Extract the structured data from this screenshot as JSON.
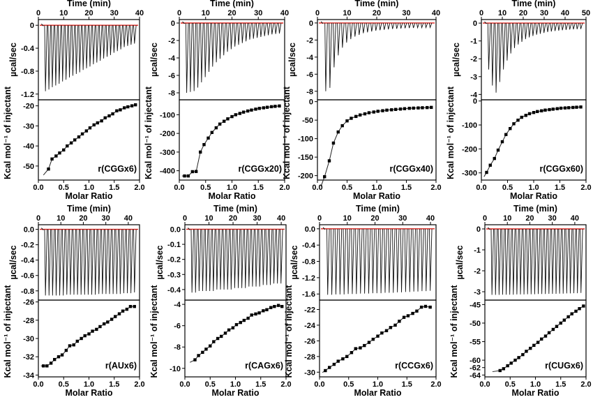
{
  "chart_data": [
    {
      "type": "scatter",
      "panel": "r(CGGx6)",
      "sample_label": "r(CGGx6)",
      "time_axis": {
        "label": "Time (min)",
        "ticks": [
          "0",
          "10",
          "20",
          "30",
          "40"
        ],
        "range": [
          0,
          40
        ]
      },
      "thermogram": {
        "ylabel": "µcal/sec",
        "ticks": [
          "0",
          "-0.4",
          "-0.8",
          "-1.2"
        ],
        "ylim": [
          -1.3,
          0.1
        ],
        "peaks": [
          -1.15,
          -1.12,
          -1.08,
          -1.05,
          -1.02,
          -0.98,
          -0.95,
          -0.91,
          -0.88,
          -0.85,
          -0.82,
          -0.78,
          -0.75,
          -0.72,
          -0.68,
          -0.65,
          -0.62,
          -0.58,
          -0.55,
          -0.52,
          -0.48,
          -0.45,
          -0.42,
          -0.38,
          -0.36,
          -0.34,
          -0.32
        ]
      },
      "isotherm": {
        "xlabel": "Molar Ratio",
        "ylabel": "Kcal mol⁻¹ of injectant",
        "xticks": [
          "0.0",
          "0.5",
          "1.0",
          "1.5",
          "2.0"
        ],
        "yticks": [
          "-20",
          "-30",
          "-40",
          "-50"
        ],
        "xlim": [
          0,
          2.0
        ],
        "ylim": [
          -57,
          -17
        ],
        "x": [
          0.2,
          0.27,
          0.35,
          0.42,
          0.5,
          0.57,
          0.65,
          0.72,
          0.8,
          0.87,
          0.95,
          1.02,
          1.1,
          1.17,
          1.25,
          1.32,
          1.4,
          1.47,
          1.55,
          1.62,
          1.7,
          1.77,
          1.85,
          1.92
        ],
        "y": [
          -51.5,
          -46.5,
          -45,
          -43.5,
          -42,
          -40,
          -38.5,
          -37,
          -35.5,
          -34,
          -32.5,
          -31,
          -29.5,
          -28.5,
          -27.5,
          -26,
          -25,
          -24,
          -22.5,
          -22,
          -21,
          -20.5,
          -20,
          -19.5
        ]
      }
    },
    {
      "type": "scatter",
      "panel": "r(CGGx20)",
      "sample_label": "r(CGGx20)",
      "time_axis": {
        "label": "Time (min)",
        "ticks": [
          "0",
          "10",
          "20",
          "30",
          "40"
        ],
        "range": [
          0,
          40
        ]
      },
      "thermogram": {
        "ylabel": "µcal/sec",
        "ticks": [
          "0",
          "-2",
          "-4",
          "-6",
          "-8"
        ],
        "ylim": [
          -8.8,
          0.4
        ],
        "peaks": [
          -8.0,
          -7.9,
          -7.8,
          -7.4,
          -6.8,
          -6.2,
          -5.6,
          -5.0,
          -4.5,
          -4.1,
          -3.7,
          -3.3,
          -3.0,
          -2.7,
          -2.5,
          -2.3,
          -2.1,
          -1.9,
          -1.8,
          -1.7,
          -1.6,
          -1.5,
          -1.4,
          -1.3,
          -1.25,
          -1.2
        ]
      },
      "isotherm": {
        "xlabel": "Molar Ratio",
        "ylabel": "Kcal mol⁻¹ of injectant",
        "xticks": [
          "0.0",
          "0.5",
          "1.0",
          "1.5",
          "2.0"
        ],
        "yticks": [
          "-100",
          "-200",
          "-300",
          "-400"
        ],
        "xlim": [
          0,
          2.0
        ],
        "ylim": [
          -450,
          -20
        ],
        "x": [
          0.1,
          0.17,
          0.25,
          0.32,
          0.4,
          0.47,
          0.55,
          0.62,
          0.7,
          0.77,
          0.85,
          0.92,
          1.0,
          1.07,
          1.15,
          1.22,
          1.3,
          1.37,
          1.45,
          1.52,
          1.6,
          1.67,
          1.75,
          1.82,
          1.9
        ],
        "y": [
          -428,
          -428,
          -405,
          -404,
          -300,
          -260,
          -225,
          -195,
          -170,
          -150,
          -135,
          -122,
          -110,
          -100,
          -93,
          -86,
          -80,
          -75,
          -70,
          -66,
          -63,
          -60,
          -57,
          -55,
          -53
        ]
      }
    },
    {
      "type": "scatter",
      "panel": "r(CGGx40)",
      "sample_label": "r(CGGx40)",
      "time_axis": {
        "label": "Time (min)",
        "ticks": [
          "0",
          "10",
          "20",
          "30",
          "40"
        ],
        "range": [
          0,
          40
        ]
      },
      "thermogram": {
        "ylabel": "µcal/sec",
        "ticks": [
          "0",
          "-2",
          "-4",
          "-6",
          "-8"
        ],
        "ylim": [
          -9.0,
          0.4
        ],
        "peaks": [
          -8.0,
          -7.6,
          -5.2,
          -3.8,
          -2.9,
          -2.3,
          -1.9,
          -1.6,
          -1.4,
          -1.2,
          -1.1,
          -1.0,
          -0.9,
          -0.85,
          -0.8,
          -0.75,
          -0.7,
          -0.68,
          -0.65,
          -0.62,
          -0.6,
          -0.58,
          -0.56,
          -0.55,
          -0.54,
          -0.53
        ]
      },
      "isotherm": {
        "xlabel": "Molar Ratio",
        "ylabel": "Kcal mol⁻¹ of injectant",
        "xticks": [
          "0.0",
          "0.5",
          "1.0",
          "1.5",
          "2.0"
        ],
        "yticks": [
          "0",
          "-50",
          "-100",
          "-150",
          "-200"
        ],
        "xlim": [
          0,
          2.0
        ],
        "ylim": [
          -212,
          5
        ],
        "x": [
          0.12,
          0.2,
          0.27,
          0.35,
          0.42,
          0.5,
          0.57,
          0.65,
          0.72,
          0.8,
          0.87,
          0.95,
          1.02,
          1.1,
          1.17,
          1.25,
          1.32,
          1.4,
          1.47,
          1.55,
          1.62,
          1.7,
          1.77,
          1.85,
          1.92
        ],
        "y": [
          -203,
          -160,
          -112,
          -82,
          -65,
          -52,
          -45,
          -40,
          -36,
          -33,
          -30,
          -28,
          -26,
          -24.5,
          -23,
          -22,
          -21,
          -20,
          -19,
          -18,
          -17.5,
          -17,
          -16.5,
          -16,
          -15.5
        ]
      }
    },
    {
      "type": "scatter",
      "panel": "r(CGGx60)",
      "sample_label": "r(CGGx60)",
      "time_axis": {
        "label": "Time (min)",
        "ticks": [
          "0",
          "10",
          "20",
          "30",
          "40",
          "50"
        ],
        "range": [
          0,
          50
        ]
      },
      "thermogram": {
        "ylabel": "µcal/sec",
        "ticks": [
          "0",
          "-1",
          "-2",
          "-3",
          "-4"
        ],
        "ylim": [
          -4.3,
          0.2
        ],
        "peaks": [
          -2.6,
          -3.5,
          -3.9,
          -3.3,
          -2.6,
          -2.1,
          -1.7,
          -1.4,
          -1.2,
          -1.05,
          -0.9,
          -0.8,
          -0.72,
          -0.65,
          -0.6,
          -0.55,
          -0.5,
          -0.47,
          -0.44,
          -0.42,
          -0.4,
          -0.38,
          -0.36,
          -0.35,
          -0.34,
          -0.33
        ]
      },
      "isotherm": {
        "xlabel": "Molar Ratio",
        "ylabel": "Kcal mol⁻¹ of injectant",
        "xticks": [
          "0.0",
          "0.5",
          "1.0",
          "1.5",
          "2.0"
        ],
        "yticks": [
          "0",
          "-100",
          "-200",
          "-300"
        ],
        "xlim": [
          0,
          2.0
        ],
        "ylim": [
          -330,
          5
        ],
        "x": [
          0.1,
          0.17,
          0.25,
          0.32,
          0.4,
          0.47,
          0.55,
          0.62,
          0.7,
          0.77,
          0.85,
          0.92,
          1.0,
          1.07,
          1.15,
          1.22,
          1.3,
          1.37,
          1.45,
          1.52,
          1.6,
          1.67,
          1.75,
          1.82,
          1.9
        ],
        "y": [
          -298,
          -268,
          -240,
          -205,
          -170,
          -140,
          -115,
          -95,
          -80,
          -68,
          -60,
          -53,
          -48,
          -44,
          -41,
          -38,
          -36,
          -34,
          -32,
          -30,
          -29,
          -28,
          -27,
          -26,
          -25
        ]
      }
    },
    {
      "type": "scatter",
      "panel": "r(AUx6)",
      "sample_label": "r(AUx6)",
      "time_axis": {
        "label": "Time (min)",
        "ticks": [
          "0",
          "10",
          "20",
          "30",
          "40"
        ],
        "range": [
          0,
          45
        ]
      },
      "thermogram": {
        "ylabel": "µcal/sec",
        "ticks": [
          "0.0",
          "-0.2",
          "-0.4",
          "-0.6",
          "-0.8"
        ],
        "ylim": [
          -0.92,
          0.06
        ],
        "peaks": [
          -0.86,
          -0.86,
          -0.86,
          -0.86,
          -0.86,
          -0.86,
          -0.85,
          -0.85,
          -0.85,
          -0.85,
          -0.85,
          -0.85,
          -0.85,
          -0.85,
          -0.85,
          -0.84,
          -0.84,
          -0.84,
          -0.84,
          -0.84,
          -0.84,
          -0.84,
          -0.83,
          -0.83,
          -0.83,
          -0.82
        ]
      },
      "isotherm": {
        "xlabel": "Molar Ratio",
        "ylabel": "Kcal mol⁻¹ of injectant",
        "xticks": [
          "0.0",
          "0.5",
          "1.0",
          "1.5",
          "2.0"
        ],
        "yticks": [
          "-26",
          "-28",
          "-30",
          "-32",
          "-34"
        ],
        "xlim": [
          0,
          2.0
        ],
        "ylim": [
          -34.2,
          -25.8
        ],
        "x": [
          0.1,
          0.17,
          0.25,
          0.32,
          0.4,
          0.47,
          0.55,
          0.62,
          0.7,
          0.77,
          0.85,
          0.92,
          1.0,
          1.07,
          1.15,
          1.22,
          1.3,
          1.37,
          1.45,
          1.52,
          1.6,
          1.67,
          1.75,
          1.82,
          1.9
        ],
        "y": [
          -33.0,
          -33.0,
          -32.7,
          -32.3,
          -32.0,
          -31.8,
          -31.3,
          -30.8,
          -30.7,
          -30.3,
          -30.0,
          -29.7,
          -29.5,
          -29.2,
          -29.0,
          -28.7,
          -28.4,
          -28.2,
          -27.9,
          -27.6,
          -27.3,
          -27.0,
          -26.8,
          -26.5,
          -26.5
        ]
      }
    },
    {
      "type": "scatter",
      "panel": "r(CAGx6)",
      "sample_label": "r(CAGx6)",
      "time_axis": {
        "label": "Time (min)",
        "ticks": [
          "0",
          "10",
          "20",
          "30",
          "40"
        ],
        "range": [
          0,
          42
        ]
      },
      "thermogram": {
        "ylabel": "µcal/sec",
        "ticks": [
          "0.0",
          "-0.1",
          "-0.2",
          "-0.3",
          "-0.4"
        ],
        "ylim": [
          -0.47,
          0.03
        ],
        "peaks": [
          -0.42,
          -0.42,
          -0.41,
          -0.41,
          -0.41,
          -0.41,
          -0.41,
          -0.4,
          -0.4,
          -0.4,
          -0.4,
          -0.4,
          -0.39,
          -0.39,
          -0.39,
          -0.39,
          -0.38,
          -0.38,
          -0.38,
          -0.38,
          -0.37,
          -0.37,
          -0.37,
          -0.36,
          -0.36,
          -0.36
        ]
      },
      "isotherm": {
        "xlabel": "Molar Ratio",
        "ylabel": "Kcal mol⁻¹ of injectant",
        "xticks": [
          "0.0",
          "0.5",
          "1.0",
          "1.5",
          "2.0"
        ],
        "yticks": [
          "-4",
          "-6",
          "-8",
          "-10"
        ],
        "xlim": [
          0,
          2.0
        ],
        "ylim": [
          -10.8,
          -3.6
        ],
        "x": [
          0.2,
          0.27,
          0.35,
          0.42,
          0.5,
          0.57,
          0.65,
          0.72,
          0.8,
          0.87,
          0.95,
          1.02,
          1.1,
          1.17,
          1.25,
          1.32,
          1.4,
          1.47,
          1.55,
          1.62,
          1.7,
          1.77,
          1.85,
          1.92
        ],
        "y": [
          -9.2,
          -8.8,
          -8.5,
          -8.2,
          -7.9,
          -7.5,
          -7.2,
          -7.0,
          -6.7,
          -6.4,
          -6.2,
          -5.9,
          -5.7,
          -5.5,
          -5.3,
          -5.0,
          -4.9,
          -4.8,
          -4.6,
          -4.5,
          -4.3,
          -4.2,
          -4.1,
          -4.2
        ]
      }
    },
    {
      "type": "scatter",
      "panel": "r(CCGx6)",
      "sample_label": "r(CCGx6)",
      "time_axis": {
        "label": "Time (min)",
        "ticks": [
          "0",
          "10",
          "20",
          "30",
          "40"
        ],
        "range": [
          0,
          42
        ]
      },
      "thermogram": {
        "ylabel": "µcal/sec",
        "ticks": [
          "0.0",
          "-0.4",
          "-0.8",
          "-1.2",
          "-1.6"
        ],
        "ylim": [
          -1.75,
          0.1
        ],
        "peaks": [
          -1.62,
          -1.62,
          -1.61,
          -1.61,
          -1.61,
          -1.6,
          -1.6,
          -1.6,
          -1.59,
          -1.59,
          -1.59,
          -1.58,
          -1.58,
          -1.58,
          -1.57,
          -1.57,
          -1.57,
          -1.56,
          -1.56,
          -1.55,
          -1.55,
          -1.54,
          -1.54,
          -1.53,
          -1.53,
          -1.52
        ]
      },
      "isotherm": {
        "xlabel": "Molar Ratio",
        "ylabel": "Kcal mol⁻¹ of injectant",
        "xticks": [
          "0.0",
          "0.5",
          "1.0",
          "1.5",
          "2.0"
        ],
        "yticks": [
          "-22",
          "-24",
          "-26",
          "-28",
          "-30"
        ],
        "xlim": [
          0,
          2.0
        ],
        "ylim": [
          -30.6,
          -20.8
        ],
        "x": [
          0.1,
          0.17,
          0.25,
          0.32,
          0.4,
          0.47,
          0.55,
          0.62,
          0.7,
          0.77,
          0.85,
          0.92,
          1.0,
          1.07,
          1.15,
          1.22,
          1.3,
          1.37,
          1.45,
          1.52,
          1.6,
          1.67,
          1.75,
          1.82,
          1.9
        ],
        "y": [
          -29.8,
          -29.4,
          -29.0,
          -28.6,
          -28.3,
          -28.0,
          -27.5,
          -27.0,
          -26.9,
          -26.6,
          -26.2,
          -25.8,
          -25.4,
          -25.0,
          -24.7,
          -24.3,
          -24.0,
          -23.5,
          -23.0,
          -22.8,
          -22.5,
          -22.2,
          -21.7,
          -21.6,
          -21.7
        ]
      }
    },
    {
      "type": "scatter",
      "panel": "r(CUGx6)",
      "sample_label": "r(CUGx6)",
      "time_axis": {
        "label": "Time (min)",
        "ticks": [
          "0",
          "10",
          "20",
          "30",
          "40"
        ],
        "range": [
          0,
          45
        ]
      },
      "thermogram": {
        "ylabel": "µcal/sec",
        "ticks": [
          "0",
          "-1",
          "-2",
          "-3"
        ],
        "ylim": [
          -3.4,
          0.2
        ],
        "peaks": [
          -3.15,
          -3.15,
          -3.15,
          -3.14,
          -3.14,
          -3.14,
          -3.14,
          -3.13,
          -3.13,
          -3.13,
          -3.12,
          -3.12,
          -3.12,
          -3.11,
          -3.11,
          -3.11,
          -3.1,
          -3.1,
          -3.1,
          -3.09,
          -3.09,
          -3.08,
          -3.08,
          -3.07,
          -3.07,
          -3.06
        ]
      },
      "isotherm": {
        "xlabel": "Molar Ratio",
        "ylabel": "Kcal mol⁻¹ of injectant",
        "xticks": [
          "0.0",
          "0.5",
          "1.0",
          "1.5",
          "2.0"
        ],
        "yticks": [
          "-45",
          "-50",
          "-55",
          "-60",
          "-62",
          "-64"
        ],
        "xlim": [
          0,
          2.0
        ],
        "ylim": [
          -64.5,
          -43.8
        ],
        "x": [
          0.3,
          0.37,
          0.45,
          0.52,
          0.6,
          0.67,
          0.75,
          0.82,
          0.9,
          0.97,
          1.05,
          1.12,
          1.2,
          1.27,
          1.35,
          1.42,
          1.5,
          1.57,
          1.65,
          1.72,
          1.8,
          1.87,
          1.95
        ],
        "y": [
          -62.8,
          -62.3,
          -61.5,
          -60.8,
          -60.0,
          -59.3,
          -58.5,
          -57.6,
          -56.8,
          -56.0,
          -55.2,
          -54.3,
          -53.5,
          -52.6,
          -51.7,
          -50.9,
          -50.0,
          -49.2,
          -48.3,
          -47.5,
          -46.8,
          -46.1,
          -45.4
        ]
      }
    }
  ]
}
